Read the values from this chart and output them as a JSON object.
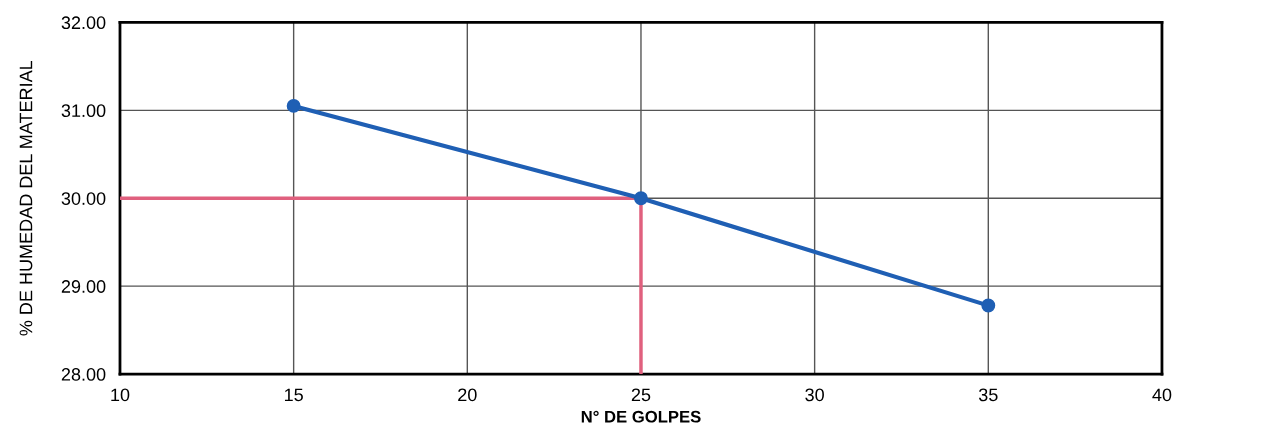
{
  "chart_data": {
    "type": "line",
    "xlabel": "N° DE GOLPES",
    "ylabel": "% DE HUMEDAD DEL MATERIAL",
    "x": [
      15,
      25,
      35
    ],
    "series": [
      {
        "color": "#1f5fb4",
        "values": [
          31.05,
          30.0,
          28.78
        ]
      }
    ],
    "xlim": [
      10,
      40
    ],
    "xticks": [
      10,
      15,
      20,
      25,
      30,
      35,
      40
    ],
    "ylim": [
      28,
      32
    ],
    "yticks": [
      {
        "value": 28,
        "label": "28.00"
      },
      {
        "value": 29,
        "label": "29.00"
      },
      {
        "value": 30,
        "label": "30.00"
      },
      {
        "value": 31,
        "label": "31.00"
      },
      {
        "value": 32,
        "label": "32.00"
      }
    ],
    "ref_lines": [
      {
        "axis": "y",
        "value": 30,
        "color": "#e0607e"
      },
      {
        "axis": "x",
        "value": 25,
        "color": "#e0607e"
      }
    ],
    "grid": true,
    "marker": "circle",
    "line_style": "solid"
  }
}
